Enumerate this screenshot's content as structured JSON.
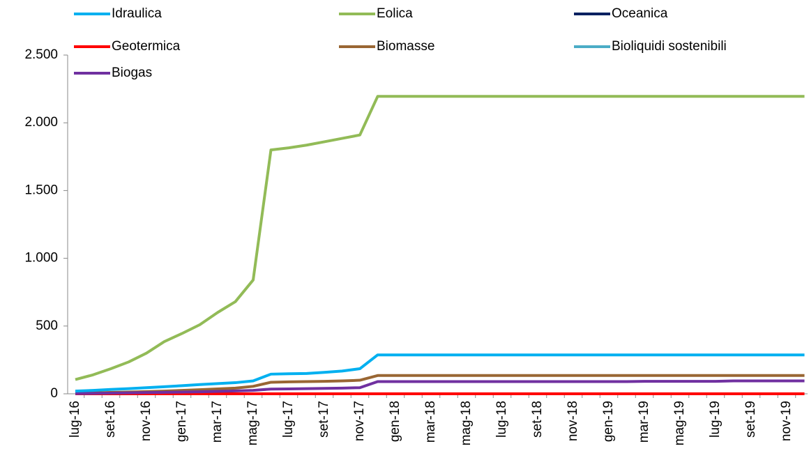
{
  "chart_data": {
    "type": "line",
    "categories": [
      "lug-16",
      null,
      "set-16",
      null,
      "nov-16",
      null,
      "gen-17",
      null,
      "mar-17",
      null,
      "mag-17",
      null,
      "lug-17",
      null,
      "set-17",
      null,
      "nov-17",
      null,
      "gen-18",
      null,
      "mar-18",
      null,
      "mag-18",
      null,
      "lug-18",
      null,
      "set-18",
      null,
      "nov-18",
      null,
      "gen-19",
      null,
      "mar-19",
      null,
      "mag-19",
      null,
      "lug-19",
      null,
      "set-19",
      null,
      "nov-19",
      null
    ],
    "series": [
      {
        "name": "Idraulica",
        "color": "#00b0f0",
        "values": [
          20,
          25,
          32,
          38,
          45,
          52,
          60,
          68,
          75,
          82,
          95,
          145,
          148,
          150,
          158,
          168,
          185,
          287,
          287,
          287,
          287,
          287,
          287,
          287,
          287,
          287,
          287,
          287,
          287,
          287,
          287,
          287,
          287,
          287,
          287,
          287,
          287,
          287,
          287,
          287,
          287,
          287
        ]
      },
      {
        "name": "Eolica",
        "color": "#92bb57",
        "values": [
          105,
          140,
          185,
          235,
          300,
          385,
          445,
          510,
          600,
          680,
          840,
          1800,
          1815,
          1835,
          1860,
          1885,
          1910,
          2195,
          2195,
          2195,
          2195,
          2195,
          2195,
          2195,
          2195,
          2195,
          2195,
          2195,
          2195,
          2195,
          2195,
          2195,
          2195,
          2195,
          2195,
          2195,
          2195,
          2195,
          2195,
          2195,
          2195,
          2195
        ]
      },
      {
        "name": "Oceanica",
        "color": "#002060",
        "values": [
          0,
          0,
          0,
          0,
          0,
          0,
          0,
          0,
          0,
          0,
          0,
          0,
          0,
          0,
          0,
          0,
          0,
          0,
          0,
          0,
          0,
          0,
          0,
          0,
          0,
          0,
          0,
          0,
          0,
          0,
          0,
          0,
          0,
          0,
          0,
          0,
          0,
          0,
          0,
          0,
          0,
          0
        ]
      },
      {
        "name": "Geotermica",
        "color": "#ff0000",
        "values": [
          0,
          0,
          0,
          0,
          0,
          0,
          0,
          0,
          0,
          0,
          0,
          0,
          0,
          0,
          0,
          0,
          0,
          0,
          0,
          0,
          0,
          0,
          0,
          0,
          0,
          0,
          0,
          0,
          0,
          0,
          0,
          0,
          0,
          0,
          0,
          0,
          0,
          0,
          0,
          0,
          0,
          0
        ]
      },
      {
        "name": "Biomasse",
        "color": "#996633",
        "values": [
          5,
          7,
          10,
          13,
          16,
          20,
          25,
          30,
          36,
          42,
          55,
          85,
          88,
          90,
          92,
          95,
          100,
          135,
          135,
          135,
          135,
          135,
          135,
          135,
          135,
          135,
          135,
          135,
          135,
          135,
          135,
          135,
          135,
          135,
          135,
          135,
          135,
          135,
          135,
          135,
          135,
          135
        ]
      },
      {
        "name": "Bioliquidi sostenibili",
        "color": "#4bacc6",
        "values": [
          0,
          0,
          0,
          0,
          0,
          0,
          0,
          0,
          0,
          0,
          0,
          0,
          0,
          0,
          0,
          0,
          0,
          0,
          0,
          0,
          0,
          0,
          0,
          0,
          0,
          0,
          0,
          0,
          0,
          0,
          0,
          0,
          0,
          0,
          0,
          0,
          0,
          0,
          0,
          0,
          0,
          0
        ]
      },
      {
        "name": "Biogas",
        "color": "#7030a0",
        "values": [
          2,
          3,
          5,
          7,
          9,
          11,
          13,
          15,
          18,
          21,
          25,
          35,
          36,
          38,
          40,
          42,
          45,
          90,
          90,
          90,
          90,
          90,
          90,
          90,
          90,
          90,
          90,
          90,
          90,
          90,
          90,
          90,
          92,
          92,
          92,
          92,
          92,
          95,
          95,
          95,
          95,
          95
        ]
      }
    ],
    "ylim": [
      0,
      2500
    ],
    "yticks": [
      0,
      500,
      {
        "value": 1000,
        "label": "1.000"
      },
      {
        "value": 1500,
        "label": "1.500"
      },
      {
        "value": 2000,
        "label": "2.000"
      },
      {
        "value": 2500,
        "label": "2.500"
      }
    ]
  }
}
